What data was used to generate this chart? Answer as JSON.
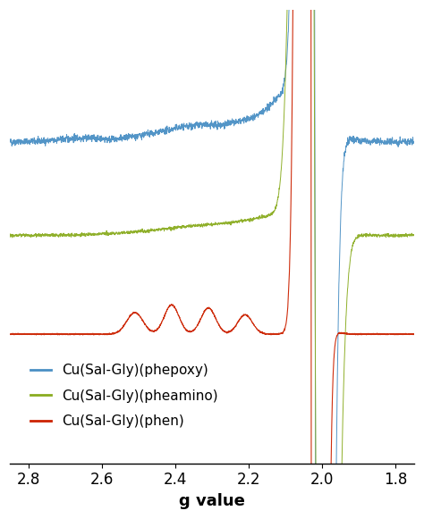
{
  "xlim": [
    2.85,
    1.75
  ],
  "xlabel": "g value",
  "xlabel_fontsize": 13,
  "xlabel_fontweight": "bold",
  "xticks": [
    2.8,
    2.6,
    2.4,
    2.2,
    2.0,
    1.8
  ],
  "tick_fontsize": 12,
  "colors": {
    "blue": "#4a8fc4",
    "green": "#8aac20",
    "red": "#cc2200"
  },
  "legend_labels": [
    "Cu(Sal-Gly)(phepoxy)",
    "Cu(Sal-Gly)(pheamino)",
    "Cu(Sal-Gly)(phen)"
  ],
  "legend_fontsize": 11,
  "background_color": "#ffffff",
  "noise_seed": 42
}
